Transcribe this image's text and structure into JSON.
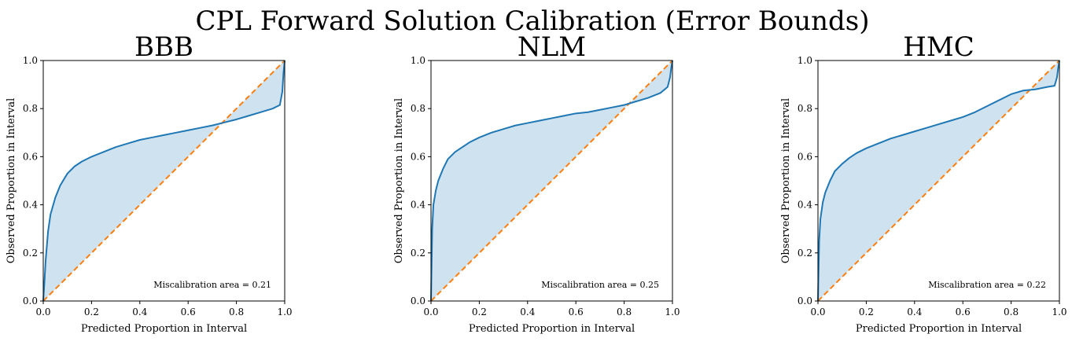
{
  "suptitle": "CPL Forward Solution Calibration (Error Bounds)",
  "colors": {
    "curve": "#1f77b4",
    "fill": "#cfe2f0",
    "ideal": "#ff7f0e",
    "axis": "#000000"
  },
  "chart_data": [
    {
      "type": "line",
      "title": "BBB",
      "xlabel": "Predicted Proportion in Interval",
      "ylabel": "Observed Proportion in Interval",
      "xlim": [
        0,
        1
      ],
      "ylim": [
        0,
        1
      ],
      "xticks": [
        "0.0",
        "0.2",
        "0.4",
        "0.6",
        "0.8",
        "1.0"
      ],
      "yticks": [
        "0.0",
        "0.2",
        "0.4",
        "0.6",
        "0.8",
        "1.0"
      ],
      "annotation": "Miscalibration area = 0.21",
      "series": [
        {
          "role": "observed",
          "x": [
            0,
            0.005,
            0.01,
            0.02,
            0.03,
            0.05,
            0.07,
            0.1,
            0.13,
            0.16,
            0.2,
            0.25,
            0.3,
            0.35,
            0.4,
            0.45,
            0.5,
            0.55,
            0.6,
            0.65,
            0.7,
            0.74,
            0.8,
            0.85,
            0.9,
            0.95,
            0.98,
            0.99,
            0.995,
            1.0
          ],
          "y": [
            0,
            0.08,
            0.17,
            0.29,
            0.36,
            0.43,
            0.48,
            0.53,
            0.56,
            0.58,
            0.6,
            0.62,
            0.64,
            0.655,
            0.67,
            0.68,
            0.69,
            0.7,
            0.71,
            0.72,
            0.73,
            0.74,
            0.755,
            0.77,
            0.785,
            0.8,
            0.815,
            0.87,
            0.95,
            1.0
          ]
        },
        {
          "role": "ideal",
          "x": [
            0,
            1
          ],
          "y": [
            0,
            1
          ]
        }
      ]
    },
    {
      "type": "line",
      "title": "NLM",
      "xlabel": "Predicted Proportion in Interval",
      "ylabel": "Observed Proportion in Interval",
      "xlim": [
        0,
        1
      ],
      "ylim": [
        0,
        1
      ],
      "xticks": [
        "0.0",
        "0.2",
        "0.4",
        "0.6",
        "0.8",
        "1.0"
      ],
      "yticks": [
        "0.0",
        "0.2",
        "0.4",
        "0.6",
        "0.8",
        "1.0"
      ],
      "annotation": "Miscalibration area = 0.25",
      "series": [
        {
          "role": "observed",
          "x": [
            0,
            0.005,
            0.01,
            0.02,
            0.03,
            0.05,
            0.07,
            0.1,
            0.13,
            0.16,
            0.2,
            0.25,
            0.3,
            0.35,
            0.4,
            0.45,
            0.5,
            0.55,
            0.6,
            0.65,
            0.7,
            0.75,
            0.8,
            0.85,
            0.9,
            0.95,
            0.98,
            0.99,
            0.995,
            1.0
          ],
          "y": [
            0,
            0.3,
            0.4,
            0.46,
            0.5,
            0.55,
            0.59,
            0.62,
            0.64,
            0.66,
            0.68,
            0.7,
            0.715,
            0.73,
            0.74,
            0.75,
            0.76,
            0.77,
            0.78,
            0.785,
            0.795,
            0.805,
            0.815,
            0.83,
            0.845,
            0.865,
            0.89,
            0.93,
            0.97,
            1.0
          ]
        },
        {
          "role": "ideal",
          "x": [
            0,
            1
          ],
          "y": [
            0,
            1
          ]
        }
      ]
    },
    {
      "type": "line",
      "title": "HMC",
      "xlabel": "Predicted Proportion in Interval",
      "ylabel": "Observed Proportion in Interval",
      "xlim": [
        0,
        1
      ],
      "ylim": [
        0,
        1
      ],
      "xticks": [
        "0.0",
        "0.2",
        "0.4",
        "0.6",
        "0.8",
        "1.0"
      ],
      "yticks": [
        "0.0",
        "0.2",
        "0.4",
        "0.6",
        "0.8",
        "1.0"
      ],
      "annotation": "Miscalibration area = 0.22",
      "series": [
        {
          "role": "observed",
          "x": [
            0,
            0.005,
            0.01,
            0.02,
            0.03,
            0.05,
            0.07,
            0.1,
            0.13,
            0.16,
            0.2,
            0.25,
            0.3,
            0.35,
            0.4,
            0.45,
            0.5,
            0.55,
            0.6,
            0.65,
            0.7,
            0.75,
            0.8,
            0.85,
            0.9,
            0.95,
            0.98,
            0.99,
            0.995,
            1.0
          ],
          "y": [
            0,
            0.25,
            0.34,
            0.41,
            0.45,
            0.5,
            0.54,
            0.57,
            0.595,
            0.615,
            0.635,
            0.655,
            0.675,
            0.69,
            0.705,
            0.72,
            0.735,
            0.75,
            0.765,
            0.785,
            0.81,
            0.835,
            0.86,
            0.875,
            0.88,
            0.89,
            0.895,
            0.93,
            0.97,
            1.0
          ]
        },
        {
          "role": "ideal",
          "x": [
            0,
            1
          ],
          "y": [
            0,
            1
          ]
        }
      ]
    }
  ]
}
